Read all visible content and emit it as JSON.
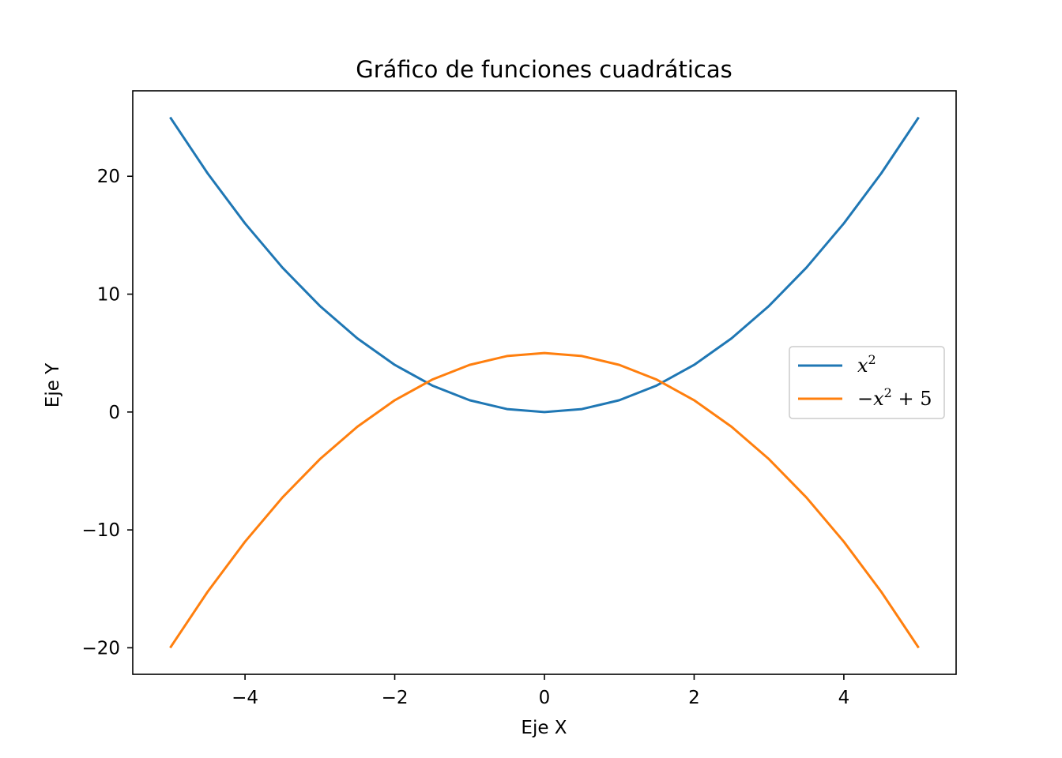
{
  "chart_data": {
    "type": "line",
    "title": "Gráfico de funciones cuadráticas",
    "xlabel": "Eje X",
    "ylabel": "Eje Y",
    "xlim": [
      -5.5,
      5.5
    ],
    "ylim": [
      -22.25,
      27.25
    ],
    "xticks": [
      -4,
      -2,
      0,
      2,
      4
    ],
    "xtick_labels": [
      "−4",
      "−2",
      "0",
      "2",
      "4"
    ],
    "yticks": [
      -20,
      -10,
      0,
      10,
      20
    ],
    "ytick_labels": [
      "−20",
      "−10",
      "0",
      "10",
      "20"
    ],
    "grid": false,
    "legend": "center-right",
    "series": [
      {
        "name": "x^2",
        "color": "#1f77b4",
        "x": [
          -5,
          -4.5,
          -4,
          -3.5,
          -3,
          -2.5,
          -2,
          -1.5,
          -1,
          -0.5,
          0,
          0.5,
          1,
          1.5,
          2,
          2.5,
          3,
          3.5,
          4,
          4.5,
          5
        ],
        "y": [
          25,
          20.25,
          16,
          12.25,
          9,
          6.25,
          4,
          2.25,
          1,
          0.25,
          0,
          0.25,
          1,
          2.25,
          4,
          6.25,
          9,
          12.25,
          16,
          20.25,
          25
        ]
      },
      {
        "name": "-x^2 + 5",
        "color": "#ff7f0e",
        "x": [
          -5,
          -4.5,
          -4,
          -3.5,
          -3,
          -2.5,
          -2,
          -1.5,
          -1,
          -0.5,
          0,
          0.5,
          1,
          1.5,
          2,
          2.5,
          3,
          3.5,
          4,
          4.5,
          5
        ],
        "y": [
          -20,
          -15.25,
          -11,
          -7.25,
          -4,
          -1.25,
          1,
          2.75,
          4,
          4.75,
          5,
          4.75,
          4,
          2.75,
          1,
          -1.25,
          -4,
          -7.25,
          -11,
          -15.25,
          -20
        ]
      }
    ]
  }
}
